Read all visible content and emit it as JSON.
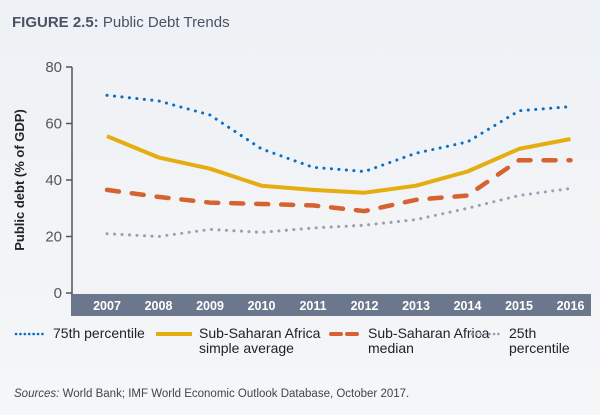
{
  "figure": {
    "label": "FIGURE 2.5:",
    "title": " Public Debt Trends"
  },
  "sources": {
    "label": "Sources:",
    "text": " World Bank; IMF World Economic Outlook Database, October 2017."
  },
  "colors": {
    "p75": "#0a6fc2",
    "average": "#e5ad0f",
    "median": "#d5622f",
    "p25": "#9aa0b0",
    "xband": "#6b778d",
    "axis": "#555555"
  },
  "chart_data": {
    "type": "line",
    "title": "Public Debt Trends",
    "xlabel": "",
    "ylabel": "Public debt (% of GDP)",
    "ylim": [
      0,
      80
    ],
    "yticks": [
      "0",
      "20",
      "40",
      "60",
      "80"
    ],
    "categories": [
      "2007",
      "2008",
      "2009",
      "2010",
      "2011",
      "2012",
      "2013",
      "2014",
      "2015",
      "2016"
    ],
    "legend_position": "bottom",
    "grid": false,
    "series": [
      {
        "key": "p75",
        "name": "75th percentile",
        "style": "dotted",
        "values": [
          70,
          68,
          63,
          51,
          44.5,
          43,
          49.5,
          53.5,
          64.5,
          66
        ]
      },
      {
        "key": "average",
        "name": "Sub-Saharan Africa simple average",
        "name_lines": [
          "Sub-Saharan Africa",
          "simple average"
        ],
        "style": "solid",
        "values": [
          55.5,
          48,
          44,
          38,
          36.5,
          35.5,
          38,
          43,
          51,
          54.5
        ]
      },
      {
        "key": "median",
        "name": "Sub-Saharan Africa median",
        "name_lines": [
          "Sub-Saharan Africa",
          "median"
        ],
        "style": "dashed",
        "values": [
          36.5,
          34,
          32,
          31.5,
          31,
          29,
          33,
          34.5,
          47,
          47
        ]
      },
      {
        "key": "p25",
        "name": "25th percentile",
        "style": "dotted",
        "values": [
          21,
          20,
          22.5,
          21.5,
          23,
          24,
          26,
          30,
          34.5,
          37
        ]
      }
    ]
  }
}
